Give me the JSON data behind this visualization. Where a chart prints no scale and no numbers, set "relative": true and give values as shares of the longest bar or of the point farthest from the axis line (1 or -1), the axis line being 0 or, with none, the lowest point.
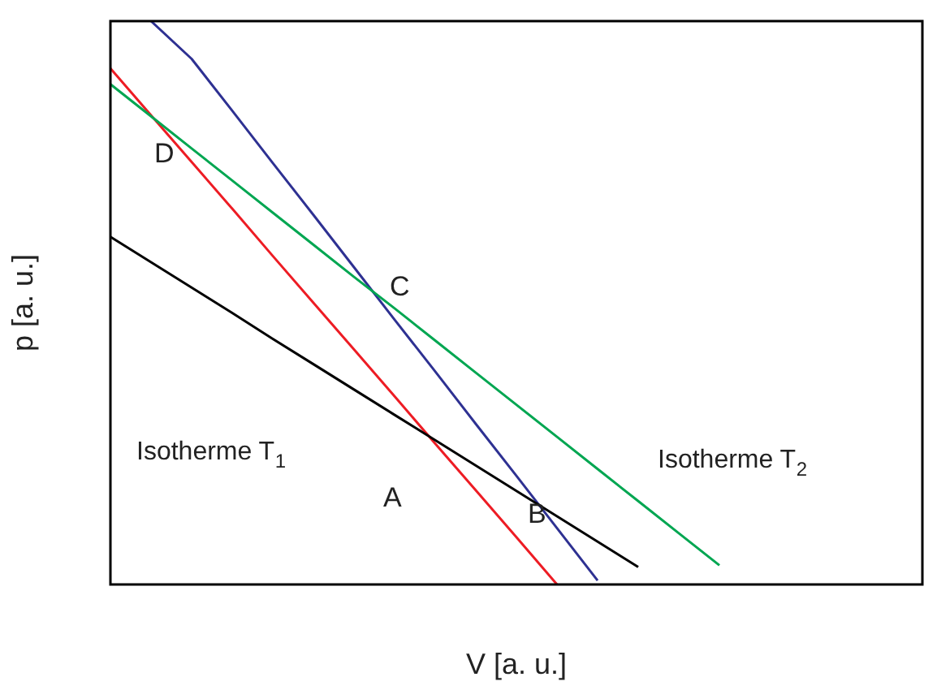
{
  "chart_data": {
    "type": "line",
    "relative": true,
    "xlabel": "V [a. u.]",
    "ylabel": "p [a. u.]",
    "categories": [
      null,
      null,
      null,
      null,
      null,
      null,
      null,
      null,
      null,
      null,
      null,
      null,
      null,
      null,
      null,
      null,
      null,
      null,
      null,
      null,
      null
    ],
    "series": [
      {
        "name": "Isotherme T$_{1}$",
        "color": "#000000",
        "values": [
          0.617,
          0.572,
          0.527,
          0.482,
          0.436,
          0.391,
          0.346,
          0.301,
          0.256,
          0.211,
          0.166,
          0.121,
          0.076,
          0.031,
          null,
          null,
          null,
          null,
          null,
          null,
          null
        ]
      },
      {
        "name": "Isotherme T$_{2}$",
        "color": "#00a651",
        "values": [
          0.888,
          0.831,
          0.774,
          0.717,
          0.66,
          0.603,
          0.546,
          0.49,
          0.433,
          0.376,
          0.319,
          0.262,
          0.205,
          0.148,
          0.091,
          0.034,
          null,
          null,
          null,
          null,
          null
        ]
      },
      {
        "color": "#ed1c24",
        "values": [
          0.916,
          0.833,
          0.75,
          0.667,
          0.583,
          0.5,
          0.417,
          0.334,
          0.25,
          0.167,
          0.084,
          0.0,
          null,
          null,
          null,
          null,
          null,
          null,
          null,
          null,
          null
        ]
      },
      {
        "color": "#2e3192",
        "values": [
          null,
          1.0,
          0.933,
          0.841,
          0.748,
          0.656,
          0.563,
          0.47,
          0.378,
          0.285,
          0.193,
          0.1,
          0.007,
          null,
          null,
          null,
          null,
          null,
          null,
          null,
          null
        ]
      }
    ],
    "annotations": [
      "A",
      "B",
      "C",
      "D"
    ],
    "legend": false,
    "grid": false,
    "marker": "none",
    "line_style": "solid"
  }
}
